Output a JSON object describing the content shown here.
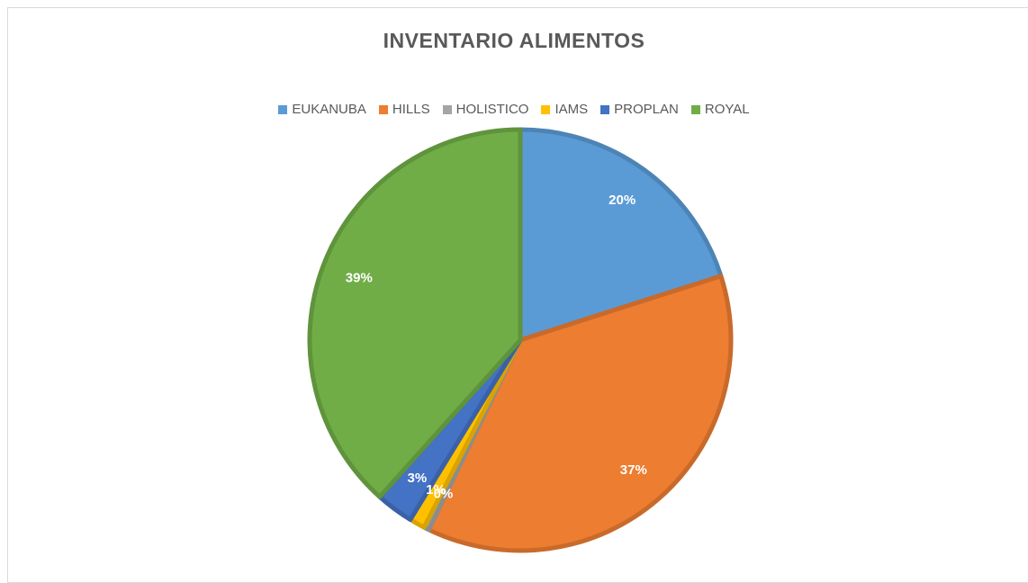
{
  "chart_data": {
    "type": "pie",
    "title": "INVENTARIO ALIMENTOS",
    "categories": [
      "EUKANUBA",
      "HILLS",
      "HOLISTICO",
      "IAMS",
      "PROPLAN",
      "ROYAL"
    ],
    "values": [
      20.2,
      37.3,
      0.4,
      1.2,
      2.9,
      38.6
    ],
    "value_labels": [
      "20%",
      "37%",
      "0%",
      "1%",
      "3%",
      "39%"
    ],
    "colors": [
      "#5b9bd5",
      "#ed7d31",
      "#a5a5a5",
      "#ffc000",
      "#4472c4",
      "#70ad47"
    ],
    "legend": "top"
  }
}
